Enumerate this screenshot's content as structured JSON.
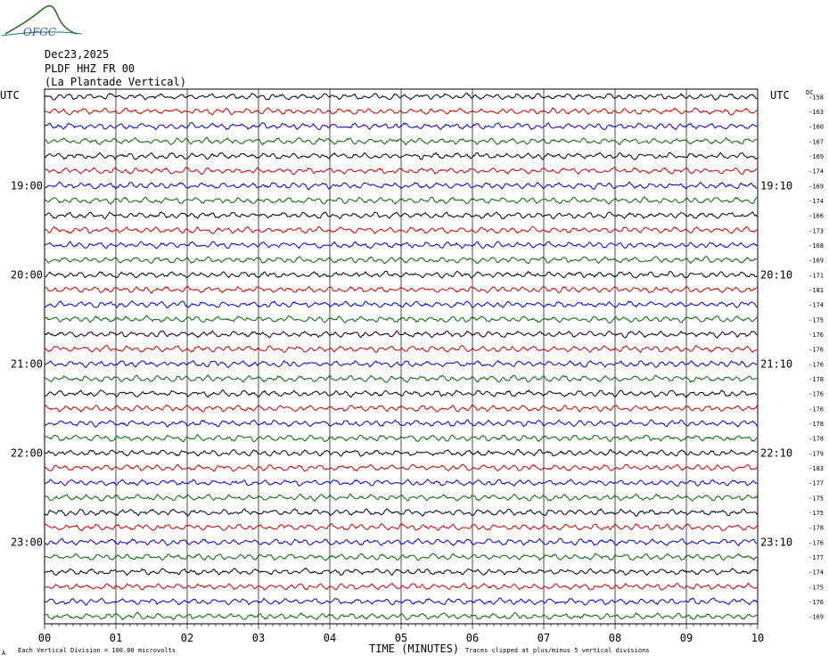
{
  "logo": {
    "text": "OFGC",
    "color": "#2a6a2a",
    "icon": "mountain-logo"
  },
  "header": {
    "date": "Dec23,2025",
    "station": "PLDF HHZ FR 00",
    "location": "(La Plantade Vertical)",
    "utc_left": "UTC",
    "utc_right": "UTC",
    "dc_label": "DC"
  },
  "footer": {
    "xlabel": "TIME (MINUTES)",
    "scale_note": "Each Vertical Division =  100.00 microvolts",
    "clip_note": "Traces clipped at plus/minus 5 vertical divisions",
    "corner_mark": "A"
  },
  "chart_data": {
    "type": "line",
    "title": "PLDF HHZ FR 00",
    "xlabel": "TIME (MINUTES)",
    "ylabel": "",
    "xlim": [
      0,
      10
    ],
    "x_ticks": [
      "00",
      "01",
      "02",
      "03",
      "04",
      "05",
      "06",
      "07",
      "08",
      "09",
      "10"
    ],
    "grid": true,
    "trace_colors": [
      "#000000",
      "#cc0000",
      "#0000cc",
      "#006600"
    ],
    "left_hour_labels": [
      {
        "row": 6,
        "label": "19:00"
      },
      {
        "row": 12,
        "label": "20:00"
      },
      {
        "row": 18,
        "label": "21:00"
      },
      {
        "row": 24,
        "label": "22:00"
      },
      {
        "row": 30,
        "label": "23:00"
      }
    ],
    "right_hour_labels": [
      {
        "row": 6,
        "label": "19:10"
      },
      {
        "row": 12,
        "label": "20:10"
      },
      {
        "row": 18,
        "label": "21:10"
      },
      {
        "row": 24,
        "label": "22:10"
      },
      {
        "row": 30,
        "label": "23:10"
      }
    ],
    "dc_offsets": [
      "-158",
      "-163",
      "-160",
      "-167",
      "-169",
      "-174",
      "-169",
      "-174",
      "-166",
      "-173",
      "-168",
      "-169",
      "-171",
      "-181",
      "-174",
      "-175",
      "-176",
      "-176",
      "-176",
      "-178",
      "-176",
      "-176",
      "-178",
      "-178",
      "-179",
      "-183",
      "-177",
      "-175",
      "-175",
      "-178",
      "-176",
      "-177",
      "-174",
      "-175",
      "-176",
      "-169"
    ]
  }
}
